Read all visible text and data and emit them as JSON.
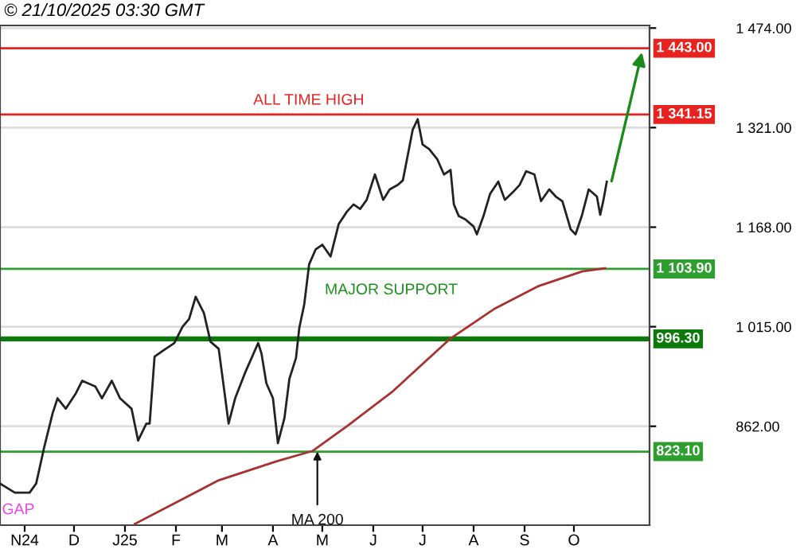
{
  "chart_data": {
    "type": "line",
    "subtitle": "© 21/10/2025 03:30 GMT",
    "xlim": [
      "2024-10-17",
      "2025-11-16"
    ],
    "xticks": [
      {
        "value": "2024-11-01",
        "label": "N24"
      },
      {
        "value": "2024-12-01",
        "label": "D"
      },
      {
        "value": "2025-01-01",
        "label": "J25"
      },
      {
        "value": "2025-02-01",
        "label": "F"
      },
      {
        "value": "2025-03-01",
        "label": "M"
      },
      {
        "value": "2025-04-01",
        "label": "A"
      },
      {
        "value": "2025-05-01",
        "label": "M"
      },
      {
        "value": "2025-06-01",
        "label": "J"
      },
      {
        "value": "2025-07-01",
        "label": "J"
      },
      {
        "value": "2025-08-01",
        "label": "A"
      },
      {
        "value": "2025-09-01",
        "label": "S"
      },
      {
        "value": "2025-10-01",
        "label": "O"
      }
    ],
    "ylim": [
      710,
      1478
    ],
    "yticks": [
      {
        "value": 862,
        "label": "862.00"
      },
      {
        "value": 1015,
        "label": "1 015.00"
      },
      {
        "value": 1168,
        "label": "1 168.00"
      },
      {
        "value": 1321,
        "label": "1 321.00"
      },
      {
        "value": 1474,
        "label": "1 474.00"
      }
    ],
    "grid": "y",
    "marker": "none",
    "line_style": "solid",
    "series": [
      {
        "color": "#222222",
        "x": [
          "2024-10-17",
          "2024-10-26",
          "2024-11-04",
          "2024-11-08",
          "2024-11-13",
          "2024-11-18",
          "2024-11-21",
          "2024-11-26",
          "2024-12-02",
          "2024-12-06",
          "2024-12-14",
          "2024-12-18",
          "2024-12-24",
          "2024-12-29",
          "2025-01-05",
          "2025-01-09",
          "2025-01-14",
          "2025-01-16",
          "2025-01-19",
          "2025-01-24",
          "2025-01-31",
          "2025-02-05",
          "2025-02-09",
          "2025-02-13",
          "2025-02-18",
          "2025-02-22",
          "2025-02-27",
          "2025-03-03",
          "2025-03-05",
          "2025-03-09",
          "2025-03-15",
          "2025-03-19",
          "2025-03-23",
          "2025-03-25",
          "2025-03-28",
          "2025-04-01",
          "2025-04-04",
          "2025-04-08",
          "2025-04-11",
          "2025-04-15",
          "2025-04-17",
          "2025-04-20",
          "2025-04-23",
          "2025-04-27",
          "2025-05-01",
          "2025-05-06",
          "2025-05-11",
          "2025-05-16",
          "2025-05-20",
          "2025-05-24",
          "2025-05-28",
          "2025-06-02",
          "2025-06-07",
          "2025-06-11",
          "2025-06-16",
          "2025-06-19",
          "2025-06-22",
          "2025-06-25",
          "2025-06-28",
          "2025-07-01",
          "2025-07-05",
          "2025-07-10",
          "2025-07-14",
          "2025-07-18",
          "2025-07-20",
          "2025-07-23",
          "2025-07-27",
          "2025-08-01",
          "2025-08-03",
          "2025-08-07",
          "2025-08-11",
          "2025-08-16",
          "2025-08-20",
          "2025-08-25",
          "2025-08-29",
          "2025-09-02",
          "2025-09-07",
          "2025-09-11",
          "2025-09-16",
          "2025-09-20",
          "2025-09-24",
          "2025-09-29",
          "2025-10-02",
          "2025-10-06",
          "2025-10-10",
          "2025-10-15",
          "2025-10-17",
          "2025-10-19",
          "2025-10-21"
        ],
        "values": [
          774,
          760,
          760,
          774,
          831,
          882,
          905,
          889,
          912,
          932,
          923,
          905,
          932,
          905,
          889,
          840,
          866,
          866,
          969,
          978,
          990,
          1015,
          1027,
          1061,
          1036,
          992,
          981,
          905,
          866,
          905,
          944,
          967,
          990,
          974,
          928,
          905,
          836,
          875,
          935,
          967,
          1013,
          1049,
          1111,
          1134,
          1141,
          1123,
          1173,
          1192,
          1203,
          1196,
          1210,
          1249,
          1210,
          1226,
          1233,
          1240,
          1279,
          1318,
          1334,
          1295,
          1288,
          1272,
          1249,
          1256,
          1203,
          1185,
          1180,
          1169,
          1157,
          1185,
          1219,
          1238,
          1210,
          1222,
          1233,
          1254,
          1249,
          1208,
          1226,
          1215,
          1208,
          1165,
          1157,
          1187,
          1226,
          1215,
          1187,
          1210,
          1238
        ]
      },
      {
        "color": "#a83232",
        "x": [
          "2025-01-07",
          "2025-02-27",
          "2025-04-03",
          "2025-04-25",
          "2025-05-17",
          "2025-06-13",
          "2025-07-18",
          "2025-08-14",
          "2025-09-09",
          "2025-10-06",
          "2025-10-20"
        ],
        "values": [
          712,
          779,
          808,
          824,
          864,
          916,
          997,
          1043,
          1077,
          1100,
          1105
        ]
      }
    ],
    "ref_lines": [
      {
        "axis": "y",
        "value": 1443.0,
        "label": "1 443.00",
        "color": "#e8231f"
      },
      {
        "axis": "y",
        "value": 1341.15,
        "label": "1 341.15",
        "color": "#e8231f"
      },
      {
        "axis": "y",
        "value": 1103.9,
        "label": "1 103.90",
        "color": "#2e9e2e"
      },
      {
        "axis": "y",
        "value": 996.3,
        "label": "996.30",
        "color": "#0b7a0b",
        "line_style": "solid"
      },
      {
        "axis": "y",
        "value": 823.1,
        "label": "823.10",
        "color": "#2e9e2e"
      }
    ],
    "annotations": [
      {
        "text": "ALL TIME HIGH",
        "x": "2025-03-20",
        "y": 1341.15
      },
      "MAJOR SUPPORT",
      {
        "text": "MA 200",
        "x": "2025-04-28",
        "y": 830
      },
      "GAP"
    ]
  }
}
